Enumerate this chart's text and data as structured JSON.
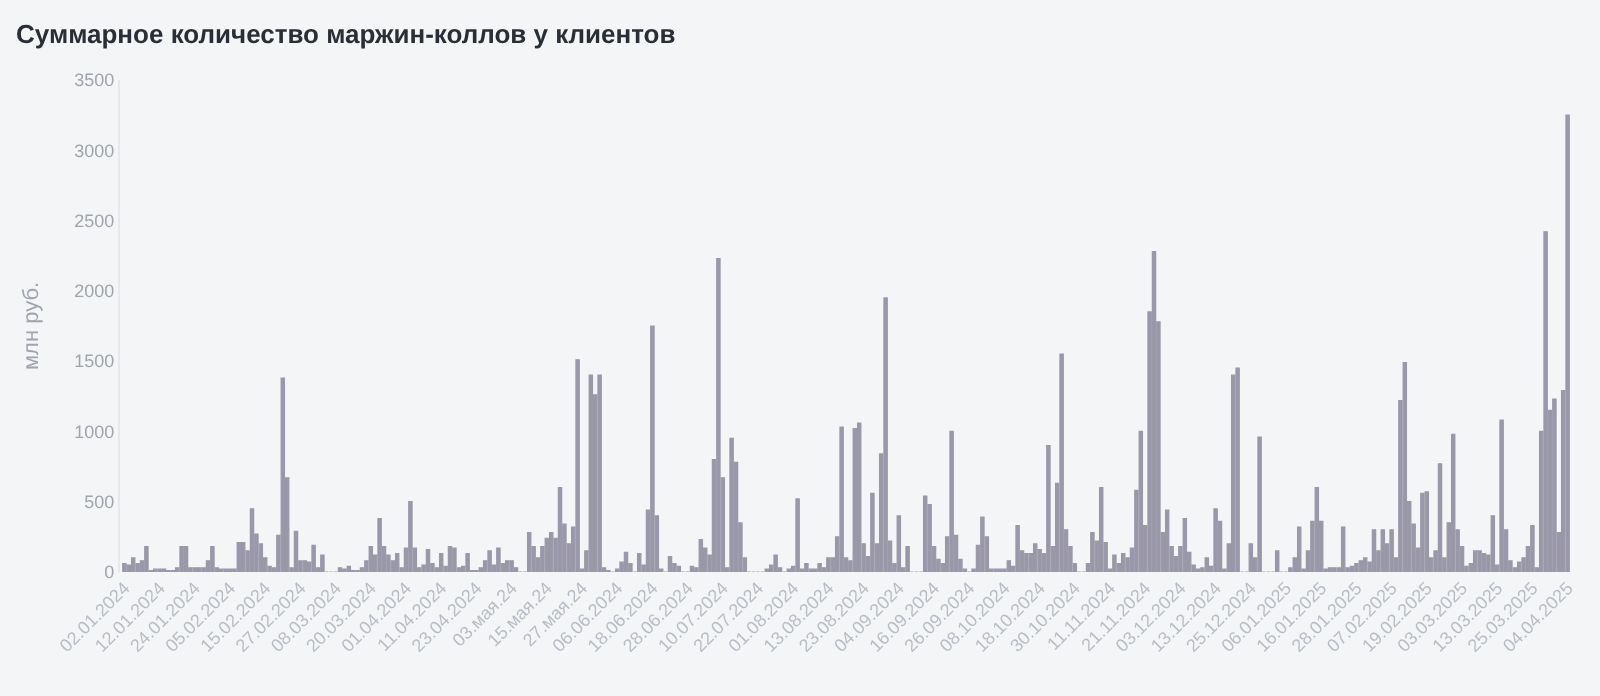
{
  "chart_data": {
    "type": "bar",
    "title": "Суммарное количество маржин-коллов у клиентов",
    "ylabel": "млн руб.",
    "ylim": [
      0,
      3500
    ],
    "yticks": [
      0,
      500,
      1000,
      1500,
      2000,
      2500,
      3000,
      3500
    ],
    "grid": false,
    "color": "#9a98a8",
    "categories": [
      "02.01.2024",
      null,
      null,
      null,
      null,
      null,
      null,
      null,
      "12.01.2024",
      null,
      null,
      null,
      null,
      null,
      null,
      null,
      "24.01.2024",
      null,
      null,
      null,
      null,
      null,
      null,
      null,
      "05.02.2024",
      null,
      null,
      null,
      null,
      null,
      null,
      null,
      "15.02.2024",
      null,
      null,
      null,
      null,
      null,
      null,
      null,
      "27.02.2024",
      null,
      null,
      null,
      null,
      null,
      null,
      null,
      "08.03.2024",
      null,
      null,
      null,
      null,
      null,
      null,
      null,
      "20.03.2024",
      null,
      null,
      null,
      null,
      null,
      null,
      null,
      "01.04.2024",
      null,
      null,
      null,
      null,
      null,
      null,
      null,
      "11.04.2024",
      null,
      null,
      null,
      null,
      null,
      null,
      null,
      "23.04.2024",
      null,
      null,
      null,
      null,
      null,
      null,
      null,
      "03.мая.24",
      null,
      null,
      null,
      null,
      null,
      null,
      null,
      "15.мая.24",
      null,
      null,
      null,
      null,
      null,
      null,
      null,
      "27.мая.24",
      null,
      null,
      null,
      null,
      null,
      null,
      null,
      "06.06.2024",
      null,
      null,
      null,
      null,
      null,
      null,
      null,
      "18.06.2024",
      null,
      null,
      null,
      null,
      null,
      null,
      null,
      "28.06.2024",
      null,
      null,
      null,
      null,
      null,
      null,
      null,
      "10.07.2024",
      null,
      null,
      null,
      null,
      null,
      null,
      null,
      "22.07.2024",
      null,
      null,
      null,
      null,
      null,
      null,
      null,
      "01.08.2024",
      null,
      null,
      null,
      null,
      null,
      null,
      null,
      "13.08.2024",
      null,
      null,
      null,
      null,
      null,
      null,
      null,
      "23.08.2024",
      null,
      null,
      null,
      null,
      null,
      null,
      null,
      "04.09.2024",
      null,
      null,
      null,
      null,
      null,
      null,
      null,
      "16.09.2024",
      null,
      null,
      null,
      null,
      null,
      null,
      null,
      "26.09.2024",
      null,
      null,
      null,
      null,
      null,
      null,
      null,
      "08.10.2024",
      null,
      null,
      null,
      null,
      null,
      null,
      null,
      "18.10.2024",
      null,
      null,
      null,
      null,
      null,
      null,
      null,
      "30.10.2024",
      null,
      null,
      null,
      null,
      null,
      null,
      null,
      "11.11.2024",
      null,
      null,
      null,
      null,
      null,
      null,
      null,
      "21.11.2024",
      null,
      null,
      null,
      null,
      null,
      null,
      null,
      "03.12.2024",
      null,
      null,
      null,
      null,
      null,
      null,
      null,
      "13.12.2024",
      null,
      null,
      null,
      null,
      null,
      null,
      null,
      "25.12.2024",
      null,
      null,
      null,
      null,
      null,
      null,
      null,
      "06.01.2025",
      null,
      null,
      null,
      null,
      null,
      null,
      null,
      "16.01.2025",
      null,
      null,
      null,
      null,
      null,
      null,
      null,
      "28.01.2025",
      null,
      null,
      null,
      null,
      null,
      null,
      null,
      "07.02.2025",
      null,
      null,
      null,
      null,
      null,
      null,
      null,
      "19.02.2025",
      null,
      null,
      null,
      null,
      null,
      null,
      null,
      "03.03.2025",
      null,
      null,
      null,
      null,
      null,
      null,
      null,
      "13.03.2025",
      null,
      null,
      null,
      null,
      null,
      null,
      null,
      "25.03.2025",
      null,
      null,
      null,
      null,
      null,
      null,
      null,
      "04.04.2025"
    ],
    "values": [
      60,
      50,
      100,
      60,
      80,
      180,
      10,
      20,
      20,
      20,
      10,
      10,
      30,
      180,
      180,
      30,
      30,
      30,
      30,
      80,
      180,
      30,
      20,
      20,
      20,
      20,
      210,
      210,
      150,
      450,
      270,
      200,
      100,
      40,
      30,
      260,
      1380,
      670,
      30,
      290,
      80,
      80,
      70,
      190,
      30,
      120,
      0,
      0,
      0,
      30,
      20,
      40,
      10,
      10,
      30,
      80,
      180,
      120,
      380,
      180,
      120,
      80,
      130,
      30,
      170,
      500,
      170,
      30,
      50,
      160,
      60,
      30,
      130,
      40,
      180,
      170,
      30,
      40,
      130,
      10,
      10,
      30,
      80,
      150,
      50,
      170,
      60,
      80,
      80,
      30,
      0,
      0,
      280,
      180,
      100,
      180,
      240,
      280,
      240,
      600,
      340,
      200,
      320,
      1510,
      20,
      150,
      1400,
      1260,
      1400,
      30,
      10,
      0,
      20,
      70,
      140,
      60,
      0,
      130,
      50,
      440,
      1750,
      400,
      20,
      0,
      110,
      60,
      40,
      0,
      0,
      40,
      30,
      230,
      170,
      120,
      800,
      2230,
      670,
      30,
      950,
      780,
      350,
      100,
      0,
      0,
      0,
      0,
      20,
      50,
      120,
      30,
      0,
      20,
      40,
      520,
      20,
      60,
      20,
      20,
      60,
      30,
      100,
      100,
      250,
      1030,
      100,
      80,
      1020,
      1060,
      200,
      110,
      560,
      200,
      840,
      1950,
      220,
      60,
      400,
      30,
      180,
      0,
      0,
      0,
      540,
      480,
      180,
      90,
      60,
      250,
      1000,
      260,
      90,
      20,
      0,
      20,
      190,
      390,
      250,
      20,
      20,
      20,
      20,
      80,
      40,
      330,
      150,
      130,
      130,
      200,
      160,
      130,
      900,
      180,
      630,
      1550,
      300,
      180,
      60,
      0,
      0,
      60,
      280,
      220,
      600,
      210,
      20,
      120,
      60,
      130,
      100,
      170,
      580,
      1000,
      330,
      1850,
      2280,
      1780,
      280,
      440,
      180,
      110,
      180,
      380,
      140,
      50,
      20,
      30,
      100,
      40,
      450,
      360,
      20,
      200,
      1400,
      1450,
      0,
      0,
      200,
      100,
      960,
      0,
      0,
      0,
      150,
      0,
      0,
      30,
      100,
      320,
      20,
      150,
      360,
      600,
      360,
      20,
      30,
      30,
      30,
      320,
      30,
      40,
      60,
      80,
      100,
      70,
      300,
      150,
      300,
      200,
      300,
      100,
      1220,
      1490,
      500,
      340,
      170,
      560,
      570,
      100,
      150,
      770,
      100,
      350,
      980,
      300,
      180,
      40,
      60,
      150,
      150,
      130,
      120,
      400,
      50,
      1080,
      300,
      80,
      30,
      70,
      100,
      180,
      330,
      30,
      1000,
      2420,
      1150,
      1230,
      280,
      1290,
      3250
    ]
  }
}
